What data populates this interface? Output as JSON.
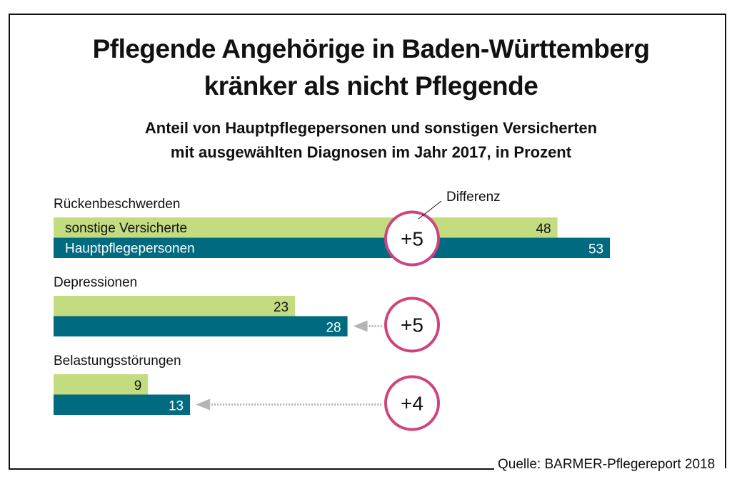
{
  "title_lines": [
    "Pflegende Angehörige in Baden-Württemberg",
    "kränker als nicht Pflegende"
  ],
  "subtitle_lines": [
    "Anteil von Hauptpflegepersonen und sonstigen Versicherten",
    "mit ausgewählten Diagnosen im Jahr 2017, in Prozent"
  ],
  "source": "Quelle: BARMER-Pflegereport 2018",
  "colors": {
    "sonstige": "#c3dc80",
    "haupt": "#006a80",
    "circle": "#d0437f",
    "arrow": "#b5b5b5"
  },
  "chart_data": {
    "type": "bar",
    "orientation": "horizontal",
    "title": "Pflegende Angehörige in Baden-Württemberg kränker als nicht Pflegende",
    "subtitle": "Anteil von Hauptpflegepersonen und sonstigen Versicherten mit ausgewählten Diagnosen im Jahr 2017, in Prozent",
    "categories": [
      "Rückenbeschwerden",
      "Depressionen",
      "Belastungsstörungen"
    ],
    "series": [
      {
        "name": "sonstige Versicherte",
        "values": [
          48,
          23,
          9
        ]
      },
      {
        "name": "Hauptpflegepersonen",
        "values": [
          53,
          28,
          13
        ]
      }
    ],
    "differences": [
      "+5",
      "+5",
      "+4"
    ],
    "annotation": "Differenz",
    "xlabel": "",
    "ylabel": "",
    "unit": "Prozent",
    "grid": false,
    "legend": "inline-in-first-bars"
  }
}
